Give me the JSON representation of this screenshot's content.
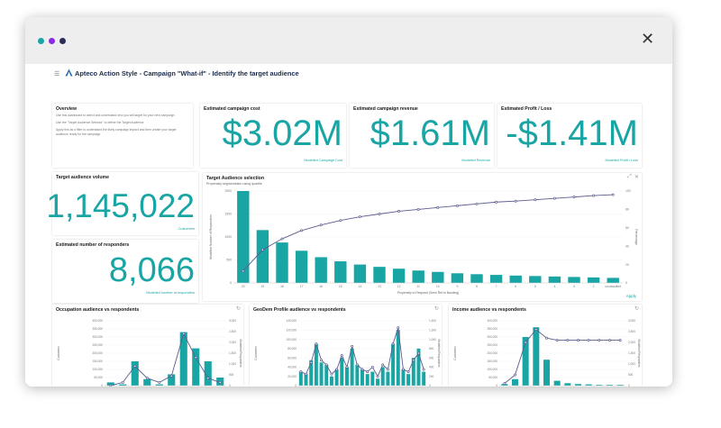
{
  "window": {
    "close_label": "✕",
    "dots": [
      "#1aa5a5",
      "#8a2be2",
      "#2b2b5e"
    ]
  },
  "header": {
    "title": "Apteco Action Style - Campaign \"What-if\" - Identify the target audience",
    "menu_icon": "menu-icon",
    "logo_icon": "apteco-logo-icon"
  },
  "overview": {
    "title": "Overview",
    "lines": [
      "Use this dashboard to select and understand who you will target for your next campaign",
      "Use the \"Target Audience Selector\" to define the Target Audience",
      "Apply this as a filter to understand the likely campaign impact and then create your target",
      "audience ready for the campaign"
    ]
  },
  "kpis": {
    "cost": {
      "title": "Estimated campaign cost",
      "value": "$3.02M",
      "label": "Modelled Campaign Cost"
    },
    "revenue": {
      "title": "Estimated campaign revenue",
      "value": "$1.61M",
      "label": "Modelled Revenue"
    },
    "profit": {
      "title": "Estimated Profit / Loss",
      "value": "-$1.41M",
      "label": "Modelled Profit / Loss"
    },
    "volume": {
      "title": "Target audience volume",
      "value": "1,145,022",
      "label": "Customers"
    },
    "responders": {
      "title": "Estimated number of responders",
      "value": "8,066",
      "label": "Modelled number of responders"
    }
  },
  "selection": {
    "title": "Target Audience selection",
    "subtitle": "Propensity segmentation using quartile",
    "apply_label": "Apply"
  },
  "chart_data": [
    {
      "type": "bar",
      "title": "Target Audience selection",
      "xlabel": "Propensity to Respond (Semi Ref to Banding)",
      "ylabel": "Modelled Number of Responders",
      "y2label": "Percentage",
      "categories": [
        "20",
        "19",
        "18",
        "17",
        "16",
        "15",
        "14",
        "13",
        "12",
        "11",
        "10",
        "9",
        "8",
        "7",
        "6",
        "5",
        "4",
        "3",
        "2",
        "unclassified"
      ],
      "ylim": [
        0,
        2000
      ],
      "y2lim": [
        0,
        100
      ],
      "yticks": [
        0,
        500,
        1000,
        1500,
        2000
      ],
      "y2ticks": [
        0,
        20,
        40,
        60,
        80,
        100
      ],
      "series": [
        {
          "values": [
            2000,
            1150,
            880,
            700,
            560,
            470,
            400,
            350,
            310,
            270,
            240,
            210,
            190,
            175,
            160,
            150,
            140,
            130,
            120,
            110
          ]
        },
        {
          "values": [
            13,
            36,
            48,
            57,
            63,
            68,
            72,
            75,
            78,
            80,
            82,
            84,
            86,
            88,
            89,
            90.5,
            92,
            93.5,
            95,
            96
          ]
        }
      ]
    },
    {
      "type": "bar",
      "title": "Occupation audience vs respondents",
      "ylabel": "Customers",
      "y2label": "Modelled Responders",
      "ylim": [
        0,
        400000
      ],
      "y2lim": [
        0,
        3000
      ],
      "yticks": [
        "0",
        "50,000",
        "100,000",
        "150,000",
        "200,000",
        "250,000",
        "300,000",
        "350,000",
        "400,000"
      ],
      "y2ticks": [
        "0",
        "500",
        "1,000",
        "1,500",
        "2,000",
        "2,500",
        "3,000"
      ],
      "series": [
        {
          "values": [
            20000,
            8000,
            150000,
            40000,
            8000,
            70000,
            330000,
            230000,
            150000,
            50000
          ]
        },
        {
          "values": [
            0,
            150,
            900,
            350,
            150,
            450,
            2400,
            1300,
            350,
            150
          ]
        }
      ]
    },
    {
      "type": "bar",
      "title": "GeoDem Profile audience vs respondents",
      "ylabel": "Customers",
      "y2label": "Modelled Responders",
      "ylim": [
        0,
        140000
      ],
      "y2lim": [
        0,
        1400
      ],
      "yticks": [
        "0",
        "20,000",
        "40,000",
        "60,000",
        "80,000",
        "100,000",
        "120,000",
        "140,000"
      ],
      "y2ticks": [
        "0",
        "200",
        "400",
        "600",
        "800",
        "1,000",
        "1,200",
        "1,400"
      ],
      "series": [
        {
          "values": [
            30000,
            25000,
            55000,
            90000,
            50000,
            45000,
            20000,
            35000,
            60000,
            40000,
            80000,
            45000,
            35000,
            25000,
            30000,
            15000,
            40000,
            30000,
            90000,
            120000,
            35000,
            25000,
            60000,
            80000,
            30000
          ]
        },
        {
          "values": [
            300,
            250,
            500,
            900,
            550,
            450,
            250,
            350,
            650,
            400,
            850,
            450,
            350,
            300,
            400,
            200,
            450,
            350,
            900,
            1250,
            350,
            300,
            550,
            700,
            350
          ]
        }
      ]
    },
    {
      "type": "bar",
      "title": "Income audience vs respondents",
      "ylabel": "Customers",
      "y2label": "Modelled Responders",
      "ylim": [
        0,
        400000
      ],
      "y2lim": [
        0,
        3000
      ],
      "yticks": [
        "0",
        "50,000",
        "100,000",
        "150,000",
        "200,000",
        "250,000",
        "300,000",
        "350,000",
        "400,000"
      ],
      "y2ticks": [
        "0",
        "500",
        "1,000",
        "1,500",
        "2,000",
        "2,500",
        "3,000"
      ],
      "series": [
        {
          "values": [
            10000,
            40000,
            300000,
            360000,
            160000,
            30000,
            15000,
            10000,
            8000,
            5000,
            5000,
            5000
          ]
        },
        {
          "values": [
            100,
            500,
            2000,
            2600,
            2200,
            2100,
            2100,
            2100,
            2100,
            2100,
            2100,
            2100
          ]
        }
      ]
    }
  ],
  "colors": {
    "teal": "#1aa5a5",
    "line": "#5b5b8f",
    "navy": "#1a2b4a"
  }
}
